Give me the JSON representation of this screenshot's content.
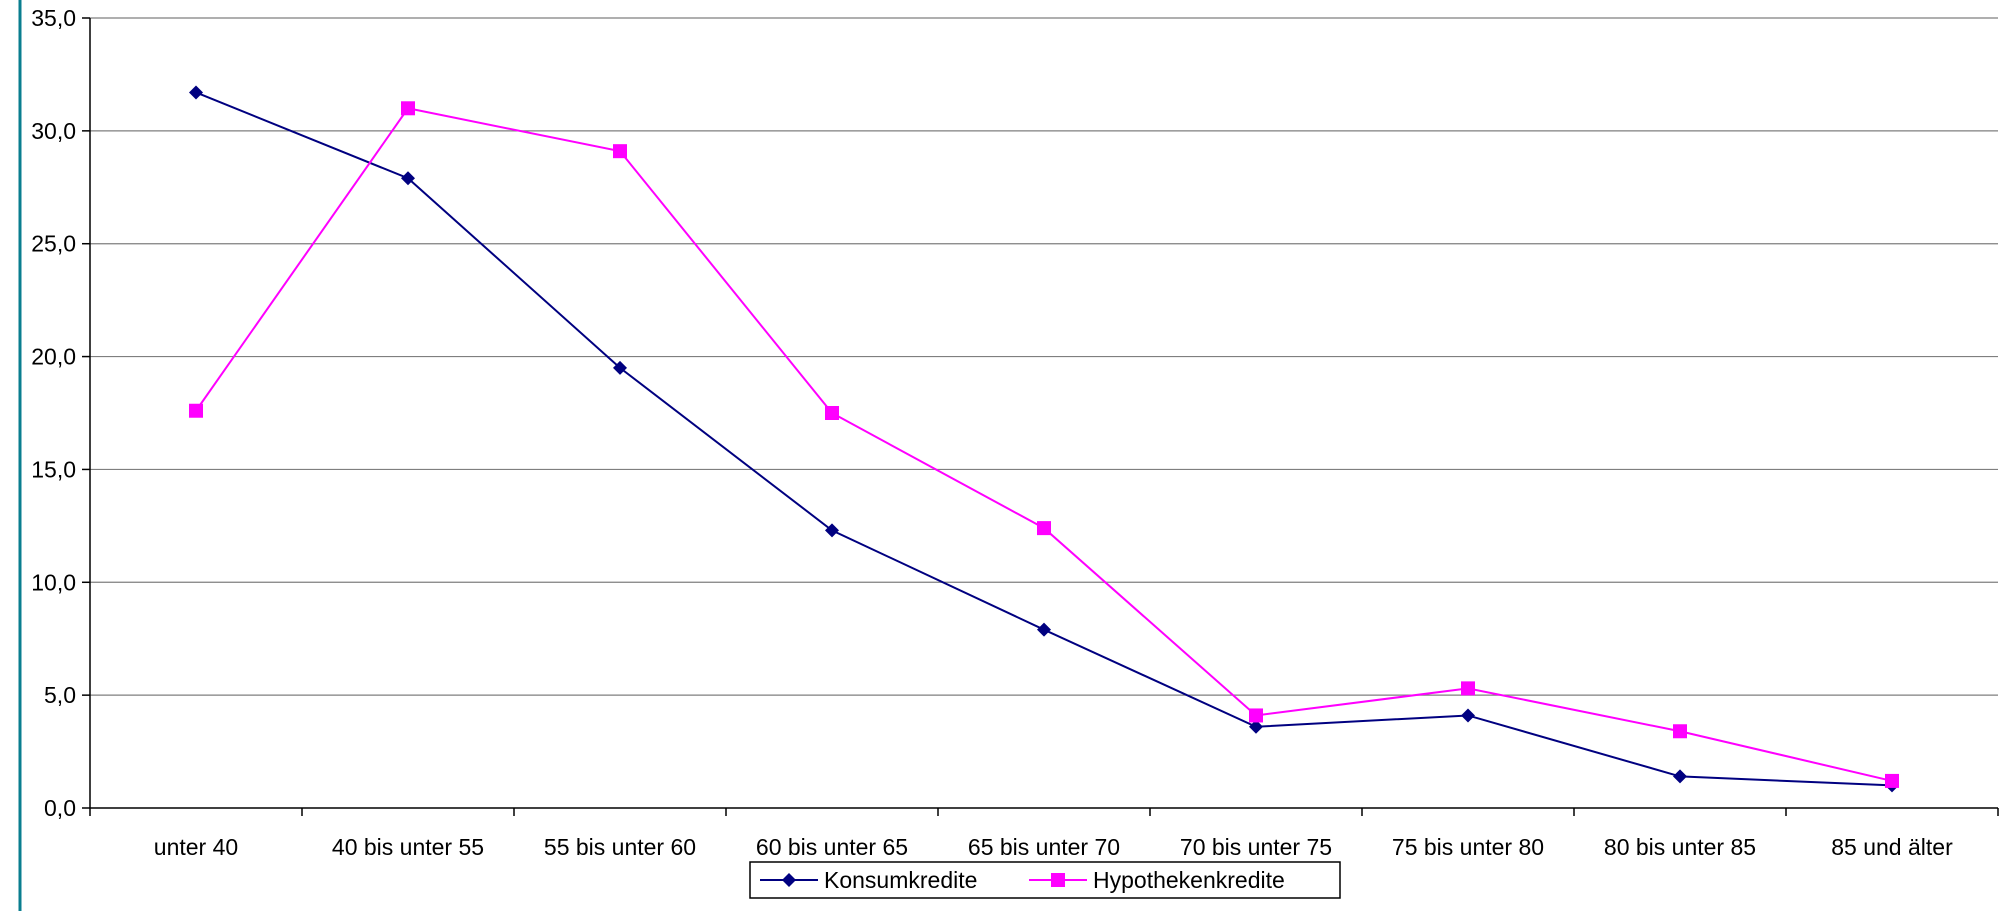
{
  "chart_data": {
    "type": "line",
    "title": "",
    "xlabel": "",
    "ylabel": "",
    "categories": [
      "unter 40",
      "40 bis unter 55",
      "55 bis unter 60",
      "60 bis unter 65",
      "65 bis unter 70",
      "70 bis unter 75",
      "75 bis unter 80",
      "80 bis unter 85",
      "85 und älter"
    ],
    "ylim": [
      0,
      35
    ],
    "yticks": [
      "0,0",
      "5,0",
      "10,0",
      "15,0",
      "20,0",
      "25,0",
      "30,0",
      "35,0"
    ],
    "grid": true,
    "legend_position": "bottom",
    "series": [
      {
        "name": "Konsumkredite",
        "color": "#000080",
        "marker": "diamond",
        "values": [
          31.7,
          27.9,
          19.5,
          12.3,
          7.9,
          3.6,
          4.1,
          1.4,
          1.0
        ]
      },
      {
        "name": "Hypothekenkredite",
        "color": "#FF00FF",
        "marker": "square",
        "values": [
          17.6,
          31.0,
          29.1,
          17.5,
          12.4,
          4.1,
          5.3,
          3.4,
          1.2
        ]
      }
    ]
  }
}
